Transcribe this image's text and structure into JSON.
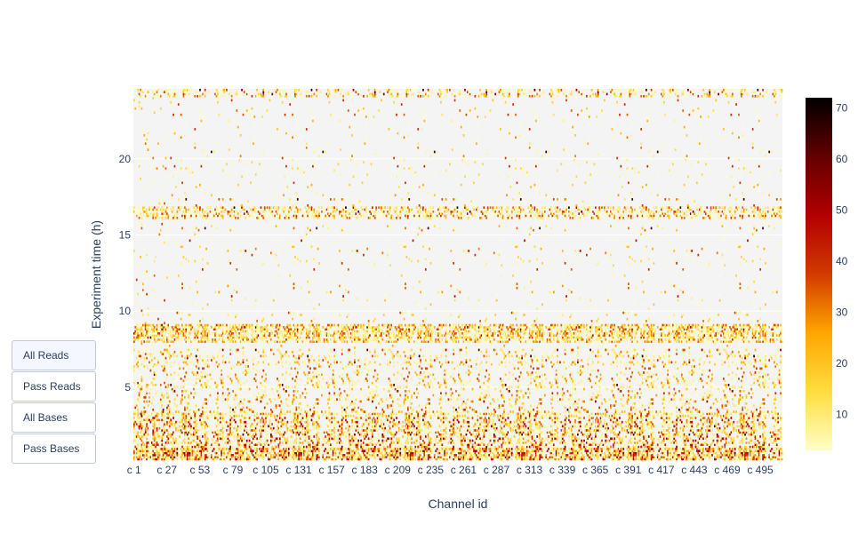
{
  "buttons": [
    {
      "label": "All Reads",
      "active": true
    },
    {
      "label": "Pass Reads",
      "active": false
    },
    {
      "label": "All Bases",
      "active": false
    },
    {
      "label": "Pass Bases",
      "active": false
    }
  ],
  "chart_data": {
    "type": "heatmap",
    "xlabel": "Channel id",
    "ylabel": "Experiment time (h)",
    "x_channels": 512,
    "x_tick_labels": [
      "c 1",
      "c 27",
      "c 53",
      "c 79",
      "c 105",
      "c 131",
      "c 157",
      "c 183",
      "c 209",
      "c 235",
      "c 261",
      "c 287",
      "c 313",
      "c 339",
      "c 365",
      "c 391",
      "c 417",
      "c 443",
      "c 469",
      "c 495"
    ],
    "x_tick_channels": [
      1,
      27,
      53,
      79,
      105,
      131,
      157,
      183,
      209,
      235,
      261,
      287,
      313,
      339,
      365,
      391,
      417,
      443,
      469,
      495
    ],
    "ylim": [
      0.2,
      24.6
    ],
    "y_ticks": [
      5,
      10,
      15,
      20
    ],
    "colorbar": {
      "range": [
        3,
        72
      ],
      "ticks": [
        10,
        20,
        30,
        40,
        50,
        60,
        70
      ],
      "colorscale": [
        "#ffffc6",
        "#ffdd40",
        "#ffa600",
        "#d13a00",
        "#b20000",
        "#640000",
        "#000000"
      ]
    },
    "background": "#f4f4f4",
    "grid": true,
    "value_pattern": "Sparse per-channel read counts over time; dense activity near 0-3 h, bright horizontal bands near 8.5 h and 16.5 h, sparser activity elsewhere"
  }
}
